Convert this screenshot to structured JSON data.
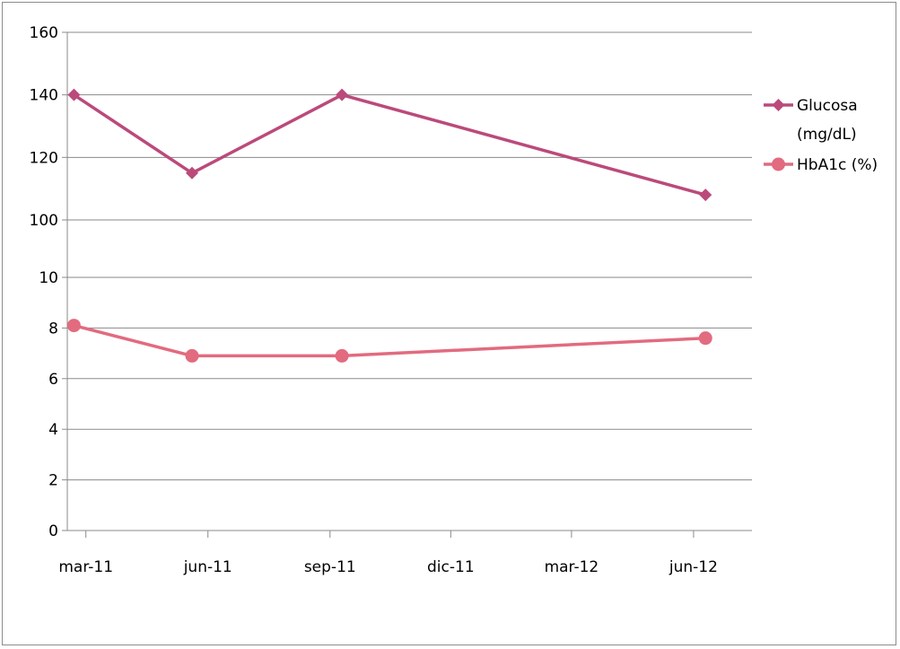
{
  "chart_data": {
    "type": "line",
    "title": "",
    "xlabel": "",
    "ylabel": "",
    "upper_panel": {
      "ylim": [
        100,
        160
      ],
      "yticks": [
        "100",
        "120",
        "140",
        "160"
      ]
    },
    "lower_panel": {
      "ylim": [
        0,
        10
      ],
      "yticks": [
        "0",
        "2",
        "4",
        "6",
        "8",
        "10"
      ]
    },
    "x_axis": {
      "range": [
        "2011-02-15",
        "2012-07-15"
      ],
      "ticks": [
        {
          "date": "2011-03-01",
          "label": "mar-11"
        },
        {
          "date": "2011-06-01",
          "label": "jun-11"
        },
        {
          "date": "2011-09-01",
          "label": "sep-11"
        },
        {
          "date": "2011-12-01",
          "label": "dic-11"
        },
        {
          "date": "2012-03-01",
          "label": "mar-12"
        },
        {
          "date": "2012-06-01",
          "label": "jun-12"
        }
      ]
    },
    "grid": "horizontal",
    "legend_position": "right",
    "series": [
      {
        "name": "Glucosa (mg/dL)",
        "legend_lines": [
          "Glucosa",
          "(mg/dL)"
        ],
        "color": "#bb4a7b",
        "marker": "diamond",
        "panel": "upper",
        "x": [
          "2011-02-20",
          "2011-05-20",
          "2011-09-10",
          "2012-06-10"
        ],
        "values": [
          140,
          115,
          140,
          108
        ]
      },
      {
        "name": "HbA1c (%)",
        "legend_lines": [
          "HbA1c (%)"
        ],
        "color": "#e26b7f",
        "marker": "circle",
        "panel": "lower",
        "x": [
          "2011-02-20",
          "2011-05-20",
          "2011-09-10",
          "2012-06-10"
        ],
        "values": [
          8.1,
          6.9,
          6.9,
          7.6
        ]
      }
    ]
  }
}
